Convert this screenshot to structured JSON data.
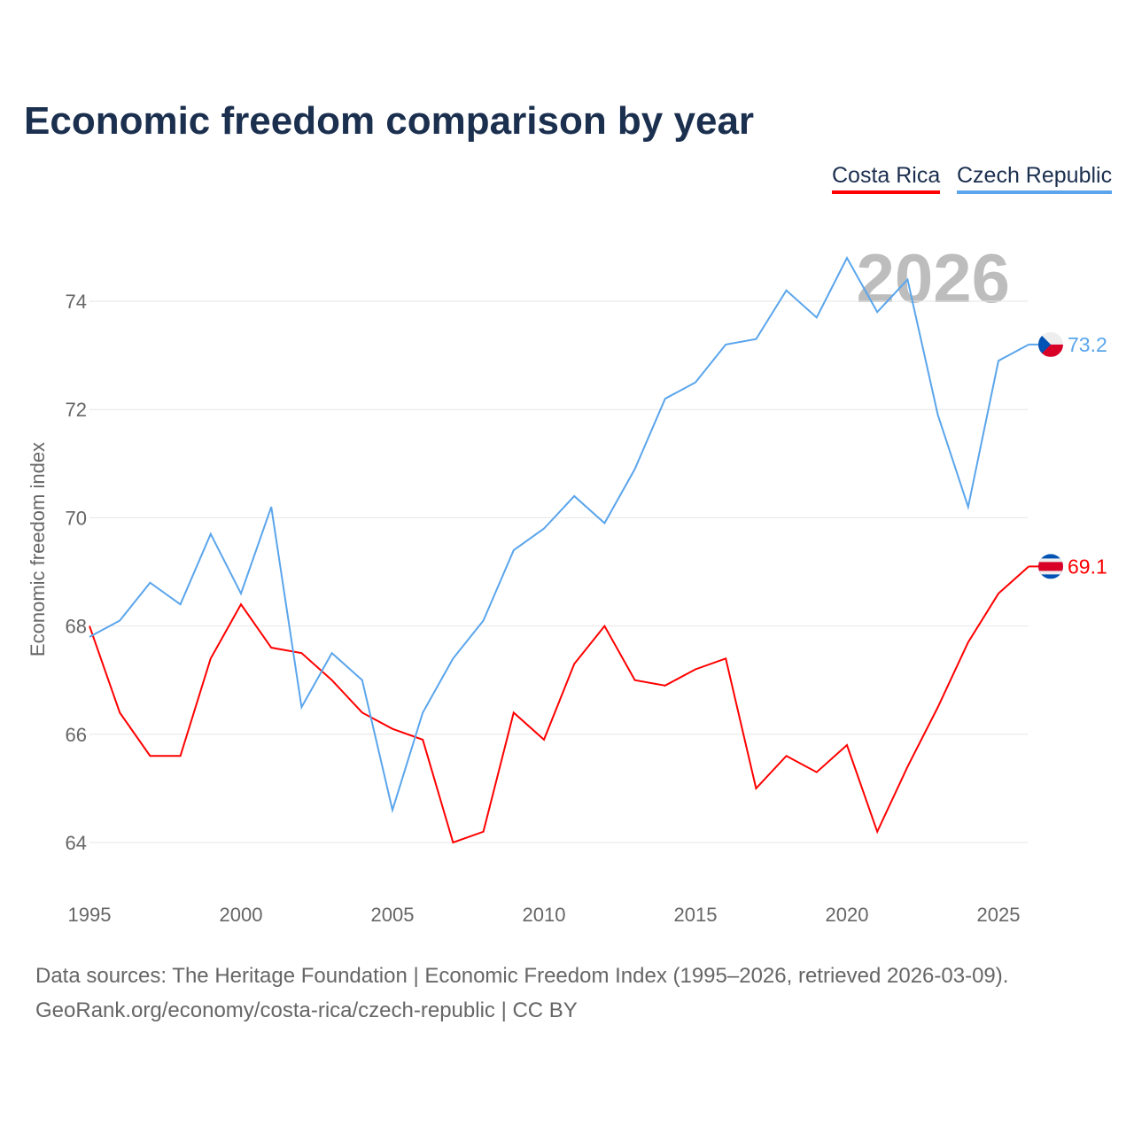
{
  "chart_data": {
    "type": "line",
    "title": "Economic freedom comparison by year",
    "xlabel": "",
    "ylabel": "Economic freedom index",
    "xlim": [
      1995,
      2026
    ],
    "ylim": [
      63,
      75.5
    ],
    "xticks": [
      1995,
      2000,
      2005,
      2010,
      2015,
      2020,
      2025
    ],
    "yticks": [
      64,
      66,
      68,
      70,
      72,
      74
    ],
    "grid": true,
    "legend_position": "top-right",
    "year_watermark": "2026",
    "x": [
      1995,
      1996,
      1997,
      1998,
      1999,
      2000,
      2001,
      2002,
      2003,
      2004,
      2005,
      2006,
      2007,
      2008,
      2009,
      2010,
      2011,
      2012,
      2013,
      2014,
      2015,
      2016,
      2017,
      2018,
      2019,
      2020,
      2021,
      2022,
      2023,
      2024,
      2025,
      2026
    ],
    "series": [
      {
        "name": "Costa Rica",
        "color": "#ff0000",
        "end_label": "69.1",
        "values": [
          68.0,
          66.4,
          65.6,
          65.6,
          67.4,
          68.4,
          67.6,
          67.5,
          67.0,
          66.4,
          66.1,
          65.9,
          64.0,
          64.2,
          66.4,
          65.9,
          67.3,
          68.0,
          67.0,
          66.9,
          67.2,
          67.4,
          65.0,
          65.6,
          65.3,
          65.8,
          64.2,
          65.4,
          66.5,
          67.7,
          68.6,
          69.1
        ]
      },
      {
        "name": "Czech Republic",
        "color": "#5aa5ec",
        "end_label": "73.2",
        "values": [
          67.8,
          68.1,
          68.8,
          68.4,
          69.7,
          68.6,
          70.2,
          66.5,
          67.5,
          67.0,
          64.6,
          66.4,
          67.4,
          68.1,
          69.4,
          69.8,
          70.4,
          69.9,
          70.9,
          72.2,
          72.5,
          73.2,
          73.3,
          74.2,
          73.7,
          74.8,
          73.8,
          74.4,
          71.9,
          70.2,
          72.9,
          73.2
        ]
      }
    ]
  },
  "sources": {
    "line1": "Data sources: The Heritage Foundation | Economic Freedom Index (1995–2026, retrieved 2026-03-09).",
    "line2": "GeoRank.org/economy/costa-rica/czech-republic | CC BY"
  }
}
